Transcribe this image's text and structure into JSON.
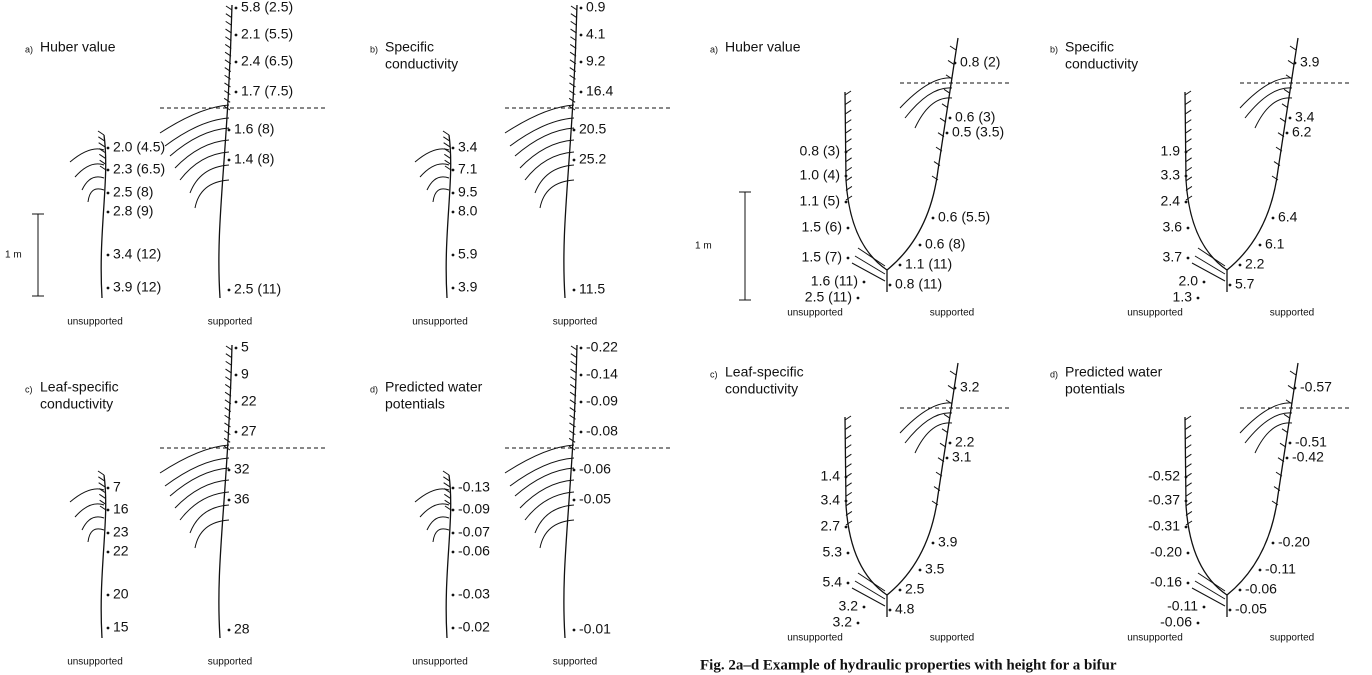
{
  "left_figure": {
    "panels": [
      {
        "letter": "a)",
        "title": [
          "Huber value"
        ],
        "scale_label": "1 m",
        "unsupported": [
          "2.0 (4.5)",
          "2.3 (6.5)",
          "2.5 (8)",
          "2.8 (9)",
          "3.4 (12)",
          "3.9 (12)"
        ],
        "supported": [
          "5.8 (2.5)",
          "2.1 (5.5)",
          "2.4 (6.5)",
          "1.7 (7.5)",
          "1.6 (8)",
          "1.4 (8)",
          "2.5 (11)"
        ],
        "unsupported_label": "unsupported",
        "supported_label": "supported"
      },
      {
        "letter": "b)",
        "title": [
          "Specific",
          "conductivity"
        ],
        "unsupported": [
          "3.4",
          "7.1",
          "9.5",
          "8.0",
          "5.9",
          "3.9"
        ],
        "supported": [
          "0.9",
          "4.1",
          "9.2",
          "16.4",
          "20.5",
          "25.2",
          "11.5"
        ],
        "unsupported_label": "unsupported",
        "supported_label": "supported"
      },
      {
        "letter": "c)",
        "title": [
          "Leaf-specific",
          "conductivity"
        ],
        "unsupported": [
          "7",
          "16",
          "23",
          "22",
          "20",
          "15"
        ],
        "supported": [
          "5",
          "9",
          "22",
          "27",
          "32",
          "36",
          "28"
        ],
        "unsupported_label": "unsupported",
        "supported_label": "supported"
      },
      {
        "letter": "d)",
        "title": [
          "Predicted water",
          "potentials"
        ],
        "unsupported": [
          "-0.13",
          "-0.09",
          "-0.07",
          "-0.06",
          "-0.03",
          "-0.02"
        ],
        "supported": [
          "-0.22",
          "-0.14",
          "-0.09",
          "-0.08",
          "-0.06",
          "-0.05",
          "-0.01"
        ],
        "unsupported_label": "unsupported",
        "supported_label": "supported"
      }
    ]
  },
  "right_figure": {
    "panels": [
      {
        "letter": "a)",
        "title": [
          "Huber value"
        ],
        "scale_label": "1 m",
        "unsupported": [
          "0.8 (3)",
          "1.0 (4)",
          "1.1 (5)",
          "1.5 (6)",
          "1.5 (7)",
          "1.6 (11)",
          "2.5 (11)"
        ],
        "supported": [
          "0.8 (2)",
          "0.6 (3)",
          "0.5 (3.5)",
          "0.6 (5.5)",
          "0.6 (8)",
          "1.1 (11)",
          "0.8 (11)"
        ],
        "unsupported_label": "unsupported",
        "supported_label": "supported"
      },
      {
        "letter": "b)",
        "title": [
          "Specific",
          "conductivity"
        ],
        "unsupported": [
          "1.9",
          "3.3",
          "2.4",
          "3.6",
          "3.7",
          "2.0",
          "1.3"
        ],
        "supported": [
          "3.9",
          "3.4",
          "6.2",
          "6.4",
          "6.1",
          "2.2",
          "5.7"
        ],
        "unsupported_label": "unsupported",
        "supported_label": "supported"
      },
      {
        "letter": "c)",
        "title": [
          "Leaf-specific",
          "conductivity"
        ],
        "unsupported": [
          "1.4",
          "3.4",
          "2.7",
          "5.3",
          "5.4",
          "3.2",
          "3.2"
        ],
        "supported": [
          "3.2",
          "2.2",
          "3.1",
          "3.9",
          "3.5",
          "2.5",
          "4.8"
        ],
        "unsupported_label": "unsupported",
        "supported_label": "supported"
      },
      {
        "letter": "d)",
        "title": [
          "Predicted water",
          "potentials"
        ],
        "unsupported": [
          "-0.52",
          "-0.37",
          "-0.31",
          "-0.20",
          "-0.16",
          "-0.11",
          "-0.06"
        ],
        "supported": [
          "-0.57",
          "-0.51",
          "-0.42",
          "-0.20",
          "-0.11",
          "-0.06",
          "-0.05"
        ],
        "unsupported_label": "unsupported",
        "supported_label": "supported"
      }
    ]
  },
  "caption": "Fig. 2a–d Example of hydraulic properties with height for a bifur"
}
